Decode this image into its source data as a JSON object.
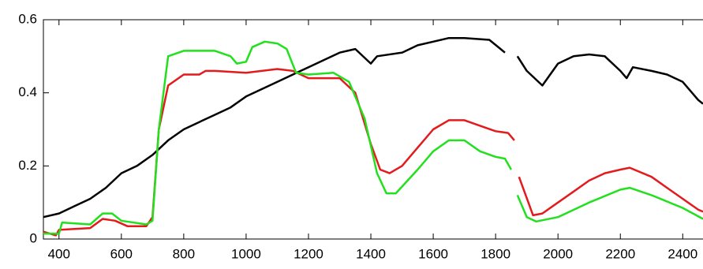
{
  "chart_data": {
    "type": "line",
    "xlim": [
      350,
      2465
    ],
    "ylim": [
      0,
      0.6
    ],
    "xticks": [
      400,
      600,
      800,
      1000,
      1200,
      1400,
      1600,
      1800,
      2000,
      2200,
      2400
    ],
    "yticks": [
      0,
      0.2,
      0.4,
      0.6
    ],
    "series": [
      {
        "color": "#000000",
        "x": [
          350,
          400,
          450,
          500,
          550,
          600,
          650,
          700,
          750,
          800,
          850,
          900,
          950,
          1000,
          1050,
          1100,
          1150,
          1200,
          1250,
          1300,
          1350,
          1400,
          1420,
          1500,
          1550,
          1600,
          1650,
          1700,
          1780,
          1830,
          1850,
          1870,
          1900,
          1950,
          2000,
          2050,
          2100,
          2150,
          2200,
          2220,
          2240,
          2300,
          2350,
          2400,
          2450,
          2465
        ],
        "values": [
          0.06,
          0.07,
          0.09,
          0.11,
          0.14,
          0.18,
          0.2,
          0.23,
          0.27,
          0.3,
          0.32,
          0.34,
          0.36,
          0.39,
          0.41,
          0.43,
          0.45,
          0.47,
          0.49,
          0.51,
          0.52,
          0.48,
          0.5,
          0.51,
          0.53,
          0.54,
          0.55,
          0.55,
          0.545,
          0.51,
          null,
          0.5,
          0.46,
          0.42,
          0.48,
          0.5,
          0.505,
          0.5,
          0.46,
          0.44,
          0.47,
          0.46,
          0.45,
          0.43,
          0.38,
          0.37
        ]
      },
      {
        "color": "#e41a1c",
        "x": [
          350,
          390,
          400,
          500,
          540,
          580,
          620,
          680,
          700,
          720,
          750,
          800,
          850,
          870,
          900,
          1000,
          1100,
          1150,
          1200,
          1300,
          1350,
          1400,
          1430,
          1460,
          1500,
          1550,
          1600,
          1650,
          1700,
          1750,
          1800,
          1840,
          1860,
          1865,
          1875,
          1920,
          1950,
          2000,
          2050,
          2100,
          2150,
          2200,
          2230,
          2300,
          2350,
          2400,
          2450,
          2465
        ],
        "values": [
          0.02,
          0.01,
          0.025,
          0.03,
          0.055,
          0.05,
          0.035,
          0.035,
          0.06,
          0.3,
          0.42,
          0.45,
          0.45,
          0.46,
          0.46,
          0.455,
          0.465,
          0.46,
          0.44,
          0.44,
          0.4,
          0.26,
          0.19,
          0.18,
          0.2,
          0.25,
          0.3,
          0.325,
          0.325,
          0.31,
          0.295,
          0.29,
          0.27,
          null,
          0.17,
          0.065,
          0.07,
          0.1,
          0.13,
          0.16,
          0.18,
          0.19,
          0.195,
          0.17,
          0.14,
          0.11,
          0.08,
          0.075
        ]
      },
      {
        "color": "#22e01e",
        "x": [
          350,
          400,
          410,
          500,
          540,
          570,
          600,
          680,
          700,
          720,
          750,
          800,
          900,
          950,
          970,
          1000,
          1020,
          1060,
          1100,
          1130,
          1160,
          1200,
          1280,
          1330,
          1380,
          1420,
          1450,
          1480,
          1550,
          1600,
          1650,
          1700,
          1750,
          1800,
          1830,
          1850,
          1860,
          1870,
          1900,
          1930,
          2000,
          2100,
          2200,
          2230,
          2300,
          2400,
          2465
        ],
        "values": [
          0.015,
          0.015,
          0.045,
          0.04,
          0.07,
          0.07,
          0.05,
          0.04,
          0.05,
          0.3,
          0.5,
          0.515,
          0.515,
          0.5,
          0.48,
          0.485,
          0.525,
          0.54,
          0.535,
          0.52,
          0.455,
          0.45,
          0.455,
          0.43,
          0.33,
          0.18,
          0.125,
          0.125,
          0.19,
          0.24,
          0.27,
          0.27,
          0.24,
          0.225,
          0.22,
          0.19,
          null,
          0.12,
          0.06,
          0.048,
          0.06,
          0.1,
          0.135,
          0.14,
          0.12,
          0.085,
          0.055
        ]
      }
    ]
  }
}
